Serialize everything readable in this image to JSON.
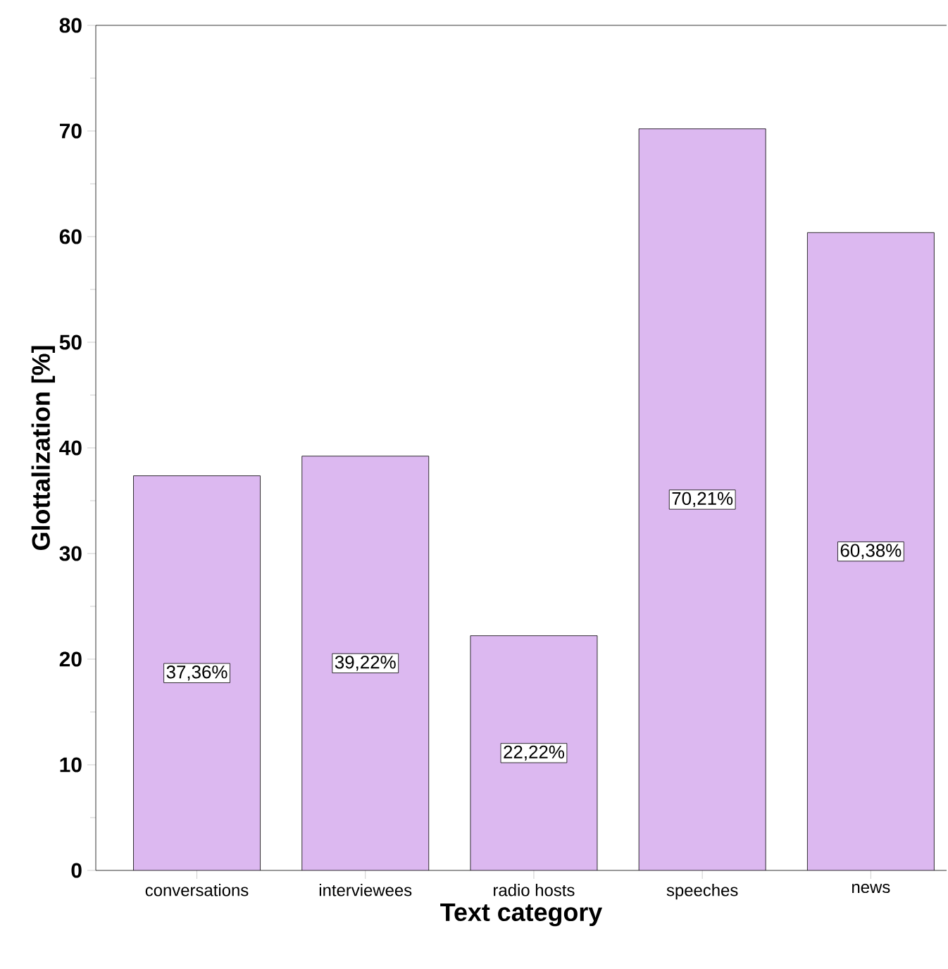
{
  "chart_data": {
    "type": "bar",
    "xlabel": "Text category",
    "ylabel": "Glottalization [%]",
    "categories": [
      "conversations",
      "interviewees",
      "radio hosts",
      "speeches",
      "news"
    ],
    "values": [
      37.36,
      39.22,
      22.22,
      70.21,
      60.38
    ],
    "value_labels": [
      "37,36%",
      "39,22%",
      "22,22%",
      "70,21%",
      "60,38%"
    ],
    "color": "#dcb8f0",
    "ylim": [
      0,
      80
    ],
    "yticks": [
      0,
      10,
      20,
      30,
      40,
      50,
      60,
      70,
      80
    ],
    "grid": false
  }
}
